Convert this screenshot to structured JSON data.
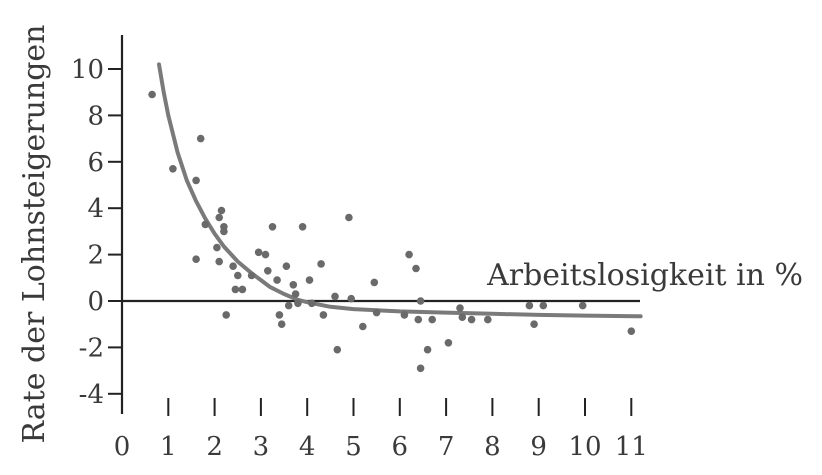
{
  "chart_data": {
    "type": "scatter",
    "title": "",
    "xlabel": "Arbeitslosigkeit in %",
    "ylabel": "Rate der Lohnsteigerungen",
    "xlim": [
      0,
      11
    ],
    "ylim": [
      -4,
      10
    ],
    "x_ticks": [
      0,
      1,
      2,
      3,
      4,
      5,
      6,
      7,
      8,
      9,
      10,
      11
    ],
    "y_ticks": [
      -4,
      -2,
      0,
      2,
      4,
      6,
      8,
      10
    ],
    "x_tick_labels": [
      "0",
      "1",
      "2",
      "3",
      "4",
      "5",
      "6",
      "7",
      "8",
      "9",
      "10",
      "11"
    ],
    "y_tick_labels": [
      "-4",
      "-2",
      "0",
      "2",
      "4",
      "6",
      "8",
      "10"
    ],
    "grid": false,
    "legend": "none",
    "colors": {
      "points": "#6a6a6a",
      "curve": "#7a7a7a",
      "axes": "#222222",
      "text": "#3a3a3a"
    },
    "series": [
      {
        "kind": "scatter",
        "points": [
          [
            0.65,
            8.9
          ],
          [
            1.1,
            5.7
          ],
          [
            1.6,
            5.2
          ],
          [
            1.7,
            7.0
          ],
          [
            1.8,
            3.3
          ],
          [
            1.6,
            1.8
          ],
          [
            2.05,
            2.3
          ],
          [
            2.1,
            3.6
          ],
          [
            2.15,
            3.9
          ],
          [
            2.2,
            3.0
          ],
          [
            2.1,
            1.7
          ],
          [
            2.2,
            3.2
          ],
          [
            2.25,
            -0.6
          ],
          [
            2.4,
            1.5
          ],
          [
            2.45,
            0.5
          ],
          [
            2.5,
            1.1
          ],
          [
            2.6,
            0.5
          ],
          [
            2.8,
            1.1
          ],
          [
            2.95,
            2.1
          ],
          [
            3.1,
            2.0
          ],
          [
            3.15,
            1.3
          ],
          [
            3.25,
            3.2
          ],
          [
            3.35,
            0.9
          ],
          [
            3.4,
            -0.6
          ],
          [
            3.45,
            -1.0
          ],
          [
            3.55,
            1.5
          ],
          [
            3.6,
            -0.2
          ],
          [
            3.7,
            0.7
          ],
          [
            3.75,
            0.3
          ],
          [
            3.8,
            -0.1
          ],
          [
            3.9,
            3.2
          ],
          [
            4.05,
            0.9
          ],
          [
            4.1,
            -0.1
          ],
          [
            4.3,
            1.6
          ],
          [
            4.35,
            -0.6
          ],
          [
            4.6,
            0.2
          ],
          [
            4.65,
            -2.1
          ],
          [
            4.9,
            3.6
          ],
          [
            4.95,
            0.1
          ],
          [
            5.2,
            -1.1
          ],
          [
            5.45,
            0.8
          ],
          [
            5.5,
            -0.5
          ],
          [
            6.1,
            -0.6
          ],
          [
            6.2,
            2.0
          ],
          [
            6.35,
            1.4
          ],
          [
            6.4,
            -0.8
          ],
          [
            6.45,
            0.0
          ],
          [
            6.45,
            -2.9
          ],
          [
            6.6,
            -2.1
          ],
          [
            6.7,
            -0.8
          ],
          [
            7.05,
            -1.8
          ],
          [
            7.3,
            -0.3
          ],
          [
            7.35,
            -0.7
          ],
          [
            7.55,
            -0.8
          ],
          [
            7.9,
            -0.8
          ],
          [
            8.8,
            -0.2
          ],
          [
            8.9,
            -1.0
          ],
          [
            9.1,
            -0.2
          ],
          [
            9.95,
            -0.2
          ],
          [
            11.0,
            -1.3
          ]
        ]
      },
      {
        "kind": "fitted-curve",
        "points": [
          [
            0.8,
            10.2
          ],
          [
            0.9,
            9.0
          ],
          [
            1.0,
            8.0
          ],
          [
            1.2,
            6.4
          ],
          [
            1.4,
            5.2
          ],
          [
            1.6,
            4.3
          ],
          [
            1.8,
            3.55
          ],
          [
            2.0,
            2.9
          ],
          [
            2.2,
            2.35
          ],
          [
            2.5,
            1.7
          ],
          [
            2.8,
            1.2
          ],
          [
            3.0,
            0.9
          ],
          [
            3.2,
            0.6
          ],
          [
            3.5,
            0.3
          ],
          [
            3.8,
            0.05
          ],
          [
            4.0,
            -0.05
          ],
          [
            4.5,
            -0.25
          ],
          [
            5.0,
            -0.35
          ],
          [
            6.0,
            -0.45
          ],
          [
            7.0,
            -0.5
          ],
          [
            8.0,
            -0.55
          ],
          [
            9.0,
            -0.6
          ],
          [
            10.0,
            -0.63
          ],
          [
            11.2,
            -0.66
          ]
        ]
      }
    ]
  }
}
